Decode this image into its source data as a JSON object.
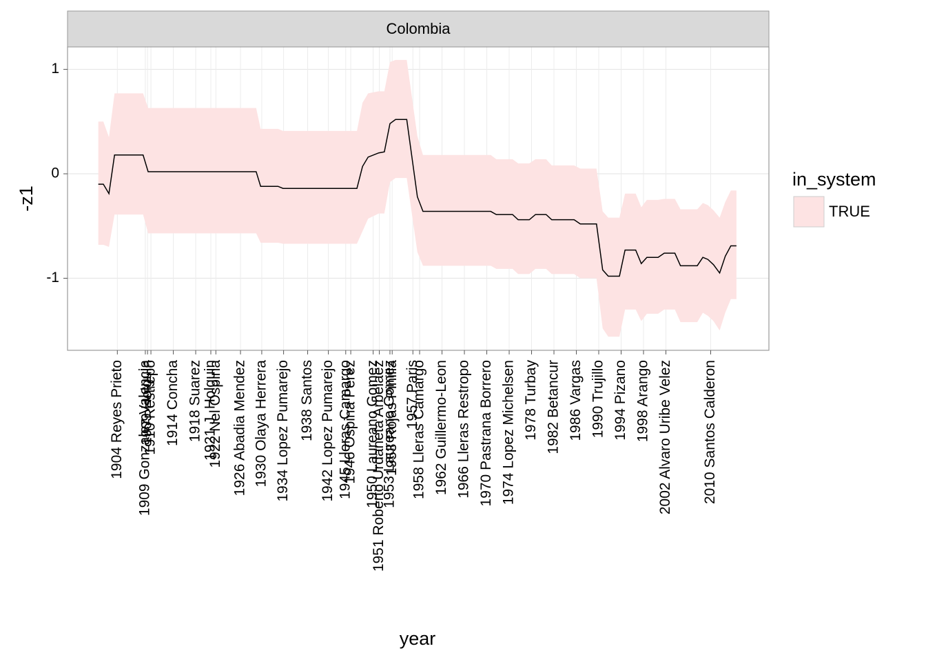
{
  "chart_data": {
    "type": "ribbon-line",
    "facet": "Colombia",
    "xlabel": "year",
    "ylabel": "-z1",
    "legend_title": "in_system",
    "xlim": [
      1895.1,
      2020.4
    ],
    "ylim": [
      -1.69,
      1.215
    ],
    "yticks": [
      -1,
      0,
      1
    ],
    "grid": true,
    "xticks": [
      {
        "value": 1904,
        "label": "1904 Reyes Prieto"
      },
      {
        "value": 1909,
        "label": "1909 Gonzalez Valencia"
      },
      {
        "value": 1909.4,
        "label": "1909 Holguin"
      },
      {
        "value": 1910,
        "label": "1910 Restrepo"
      },
      {
        "value": 1914,
        "label": "1914 Concha"
      },
      {
        "value": 1918,
        "label": "1918 Suarez"
      },
      {
        "value": 1920.7,
        "label": "1921 J. Holguin"
      },
      {
        "value": 1921.6,
        "label": "1922 Nel Ospina"
      },
      {
        "value": 1926,
        "label": "1926 Abadia Mendez"
      },
      {
        "value": 1929.8,
        "label": "1930 Olaya Herrera"
      },
      {
        "value": 1933.7,
        "label": "1934 Lopez Pumarejo"
      },
      {
        "value": 1938,
        "label": "1938 Santos"
      },
      {
        "value": 1941.7,
        "label": "1942 Lopez Pumarejo"
      },
      {
        "value": 1944.8,
        "label": "1945 Lleras Camargo"
      },
      {
        "value": 1945.7,
        "label": "1946 Ospina Perez"
      },
      {
        "value": 1949.7,
        "label": "1950 Laureano Gomez"
      },
      {
        "value": 1950.8,
        "label": "1951 Roberto Urdaneta Arbelaez"
      },
      {
        "value": 1952.7,
        "label": "1953 Laureano Gomez"
      },
      {
        "value": 1953.1,
        "label": "1953 Rojas Pinilla"
      },
      {
        "value": 1956.8,
        "label": "1957 Paris"
      },
      {
        "value": 1958,
        "label": "1958 Lleras Camargo"
      },
      {
        "value": 1962,
        "label": "1962 Guillermo-Leon"
      },
      {
        "value": 1966,
        "label": "1966 Lleras Restropo"
      },
      {
        "value": 1970,
        "label": "1970 Pastrana Borrero"
      },
      {
        "value": 1974,
        "label": "1974 Lopez Michelsen"
      },
      {
        "value": 1978,
        "label": "1978 Turbay"
      },
      {
        "value": 1982,
        "label": "1982 Betancur"
      },
      {
        "value": 1986,
        "label": "1986 Vargas"
      },
      {
        "value": 1990,
        "label": "1990 Trujillo"
      },
      {
        "value": 1994,
        "label": "1994 Pizano"
      },
      {
        "value": 1998,
        "label": "1998 Arango"
      },
      {
        "value": 2002,
        "label": "2002 Alvaro Uribe Velez"
      },
      {
        "value": 2010,
        "label": "2010 Santos Calderon"
      }
    ],
    "x": [
      1900.6,
      1901.5,
      1902.5,
      1903.5,
      1908.6,
      1909.5,
      1928.8,
      1929.6,
      1932.7,
      1933.6,
      1946.8,
      1947.8,
      1948.8,
      1950.7,
      1951.7,
      1952.7,
      1953.7,
      1955.7,
      1957.6,
      1958.6,
      1970.7,
      1971.7,
      1974.6,
      1975.6,
      1977.6,
      1978.7,
      1980.6,
      1981.6,
      1985.6,
      1986.7,
      1989.6,
      1990.7,
      1991.7,
      1993.7,
      1994.7,
      1996.6,
      1997.6,
      1998.6,
      2000.6,
      2001.7,
      2003.6,
      2004.6,
      2007.6,
      2008.6,
      2009.5,
      2010.5,
      2011.6,
      2012.6,
      2013.6,
      2014.6
    ],
    "series": [
      {
        "name": "TRUE",
        "fill": "#fde3e3",
        "line_color": "#000000",
        "values": [
          -0.1,
          -0.1,
          -0.19,
          0.18,
          0.18,
          0.02,
          0.02,
          -0.12,
          -0.12,
          -0.14,
          -0.14,
          0.07,
          0.16,
          0.2,
          0.21,
          0.48,
          0.52,
          0.52,
          -0.22,
          -0.36,
          -0.36,
          -0.39,
          -0.39,
          -0.44,
          -0.44,
          -0.39,
          -0.39,
          -0.44,
          -0.44,
          -0.48,
          -0.48,
          -0.92,
          -0.98,
          -0.98,
          -0.73,
          -0.73,
          -0.86,
          -0.8,
          -0.8,
          -0.76,
          -0.76,
          -0.88,
          -0.88,
          -0.8,
          -0.82,
          -0.87,
          -0.95,
          -0.79,
          -0.69,
          -0.69
        ],
        "upper": [
          0.5,
          0.5,
          0.35,
          0.77,
          0.77,
          0.63,
          0.63,
          0.43,
          0.43,
          0.41,
          0.41,
          0.68,
          0.77,
          0.79,
          0.79,
          1.07,
          1.09,
          1.09,
          0.36,
          0.18,
          0.18,
          0.14,
          0.14,
          0.1,
          0.1,
          0.14,
          0.14,
          0.08,
          0.08,
          0.05,
          0.05,
          -0.36,
          -0.42,
          -0.42,
          -0.19,
          -0.19,
          -0.32,
          -0.25,
          -0.25,
          -0.24,
          -0.24,
          -0.34,
          -0.34,
          -0.28,
          -0.3,
          -0.35,
          -0.42,
          -0.27,
          -0.16,
          -0.16
        ],
        "lower": [
          -0.68,
          -0.68,
          -0.7,
          -0.39,
          -0.39,
          -0.57,
          -0.57,
          -0.66,
          -0.66,
          -0.67,
          -0.67,
          -0.55,
          -0.43,
          -0.38,
          -0.38,
          -0.08,
          -0.04,
          -0.04,
          -0.75,
          -0.88,
          -0.88,
          -0.91,
          -0.91,
          -0.96,
          -0.96,
          -0.91,
          -0.91,
          -0.96,
          -0.96,
          -1.0,
          -1.0,
          -1.48,
          -1.56,
          -1.56,
          -1.3,
          -1.3,
          -1.41,
          -1.34,
          -1.34,
          -1.3,
          -1.3,
          -1.42,
          -1.42,
          -1.33,
          -1.36,
          -1.41,
          -1.5,
          -1.33,
          -1.2,
          -1.2
        ]
      }
    ]
  }
}
